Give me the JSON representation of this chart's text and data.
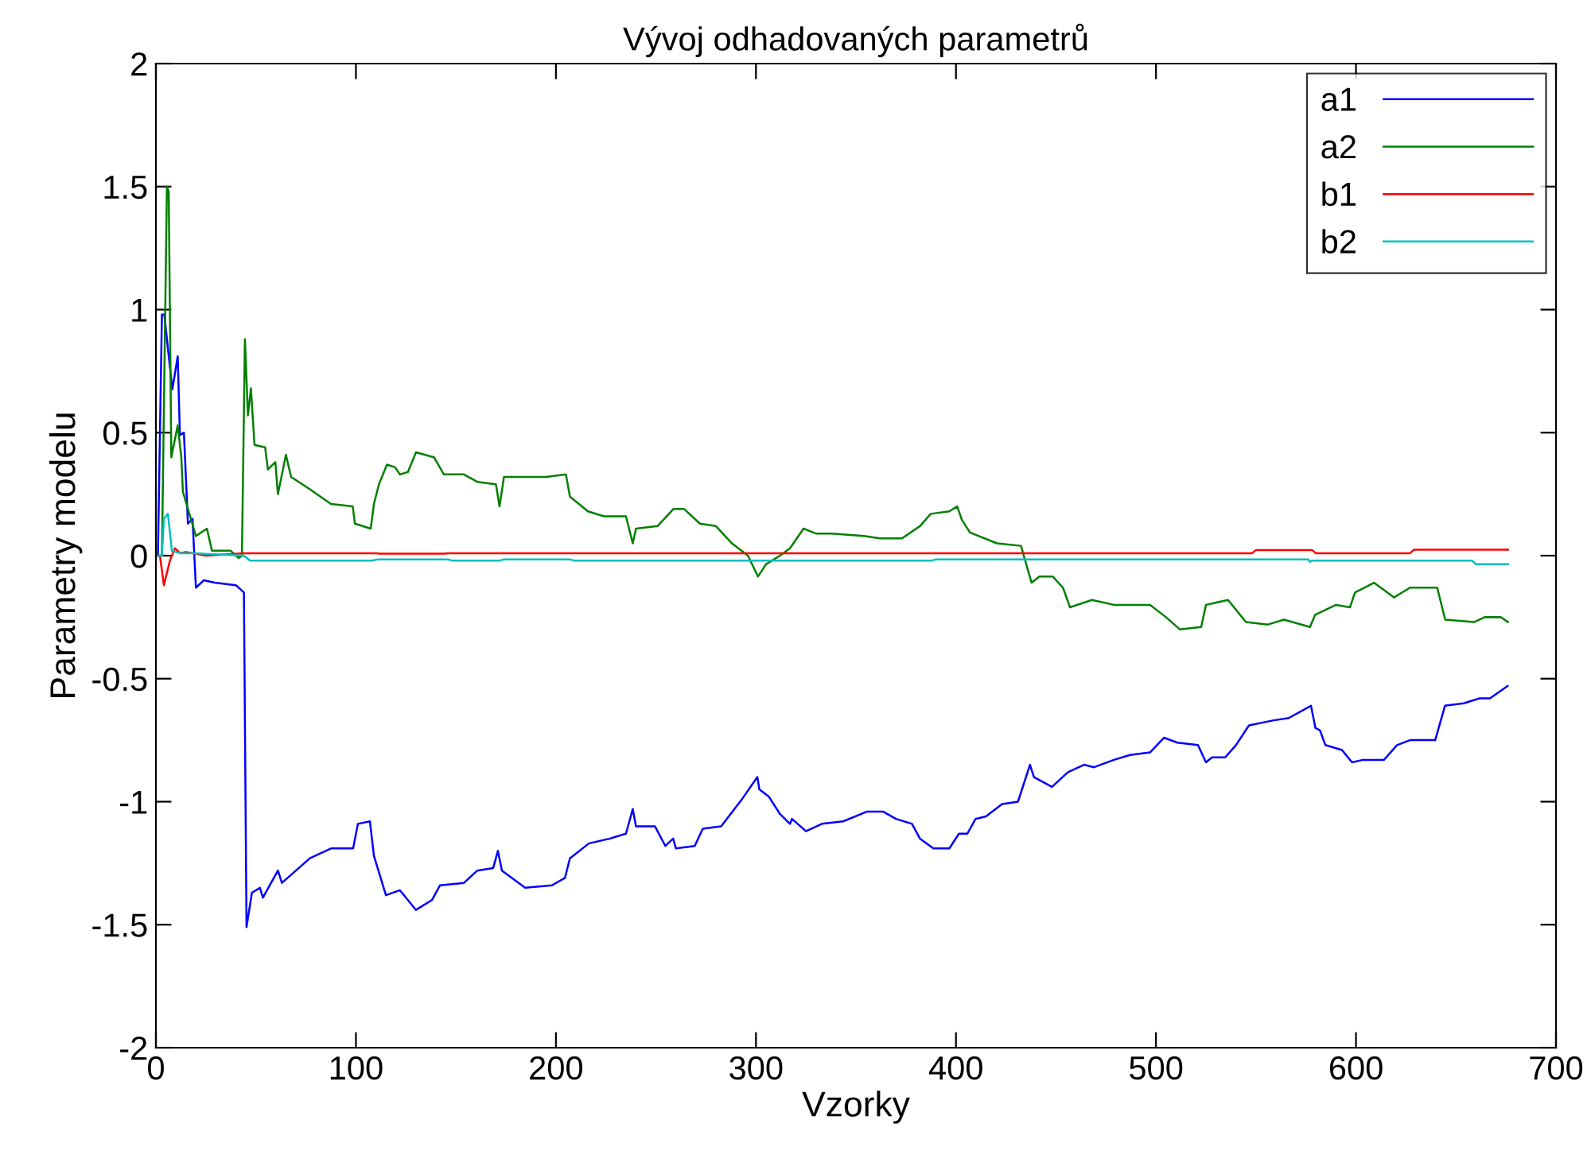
{
  "chart_data": {
    "type": "line",
    "title": "Vývoj odhadovaných parametrů",
    "xlabel": "Vzorky",
    "ylabel": "Parametry modelu",
    "xlim": [
      0,
      700
    ],
    "xticks": [
      0,
      100,
      200,
      300,
      400,
      500,
      600,
      700
    ],
    "ylim": [
      -2,
      2
    ],
    "yticks": [
      -2,
      -1.5,
      -1,
      -0.5,
      0,
      0.5,
      1,
      1.5,
      2
    ],
    "grid": false,
    "legend": "top right",
    "marker": "none",
    "line_style": "solid",
    "series": [
      {
        "name": "a1",
        "color": "#0000ff",
        "x": [
          1,
          3,
          4.2,
          8.2,
          10.9,
          12,
          14,
          16,
          18.3,
          20,
          24,
          29.5,
          40,
          44,
          45.3,
          48,
          52,
          53.5,
          61,
          63,
          77,
          87.5,
          98.6,
          101,
          107,
          109,
          115,
          122,
          130,
          138,
          142,
          154,
          160.7,
          168.6,
          171,
          173,
          184.6,
          198,
          204.5,
          207,
          216.4,
          227,
          235,
          238.4,
          240,
          249.5,
          254.7,
          258.6,
          260,
          269.4,
          273.4,
          282.6,
          293,
          300.7,
          301.7,
          306.5,
          312,
          317,
          318,
          325,
          333,
          343.6,
          355.6,
          363.5,
          370,
          378,
          382,
          388.7,
          396.7,
          401.5,
          405.7,
          409.8,
          415,
          423,
          431,
          437,
          439,
          448,
          456,
          464,
          469,
          479,
          487,
          497,
          504,
          510.7,
          521,
          525,
          528,
          534.6,
          540,
          546.5,
          558.4,
          566.4,
          577.5,
          579.7,
          582,
          584.7,
          593,
          598,
          603.5,
          614,
          620.5,
          627,
          636,
          639.6,
          644.5,
          653.9,
          661.8,
          667,
          675.8
        ],
        "values": [
          0,
          0.98,
          0.98,
          0.675,
          0.81,
          0.49,
          0.5,
          0.13,
          0.15,
          -0.13,
          -0.1,
          -0.11,
          -0.12,
          -0.15,
          -1.51,
          -1.37,
          -1.35,
          -1.39,
          -1.28,
          -1.33,
          -1.23,
          -1.19,
          -1.19,
          -1.09,
          -1.08,
          -1.22,
          -1.38,
          -1.36,
          -1.44,
          -1.4,
          -1.34,
          -1.33,
          -1.28,
          -1.27,
          -1.2,
          -1.28,
          -1.35,
          -1.34,
          -1.31,
          -1.23,
          -1.17,
          -1.15,
          -1.13,
          -1.03,
          -1.1,
          -1.1,
          -1.18,
          -1.15,
          -1.19,
          -1.18,
          -1.11,
          -1.1,
          -0.99,
          -0.9,
          -0.95,
          -0.98,
          -1.05,
          -1.09,
          -1.07,
          -1.12,
          -1.09,
          -1.08,
          -1.04,
          -1.04,
          -1.07,
          -1.09,
          -1.15,
          -1.19,
          -1.19,
          -1.13,
          -1.13,
          -1.07,
          -1.06,
          -1.01,
          -1,
          -0.85,
          -0.9,
          -0.94,
          -0.88,
          -0.85,
          -0.86,
          -0.83,
          -0.81,
          -0.8,
          -0.74,
          -0.76,
          -0.77,
          -0.84,
          -0.82,
          -0.82,
          -0.77,
          -0.69,
          -0.67,
          -0.66,
          -0.61,
          -0.7,
          -0.71,
          -0.77,
          -0.79,
          -0.84,
          -0.83,
          -0.83,
          -0.77,
          -0.75,
          -0.75,
          -0.75,
          -0.61,
          -0.6,
          -0.58,
          -0.58,
          -0.53
        ]
      },
      {
        "name": "a2",
        "color": "#008000",
        "x": [
          1,
          3,
          5.5,
          6.4,
          7.7,
          10.9,
          12.7,
          13.5,
          16,
          20,
          25.5,
          28,
          37.4,
          41.4,
          43,
          44.5,
          46,
          47.5,
          49.3,
          54.6,
          56,
          59.7,
          61,
          65,
          67.6,
          77,
          87.5,
          98.4,
          99.5,
          107.4,
          109,
          111.5,
          115.5,
          119.5,
          122,
          126,
          130,
          139,
          144,
          154,
          160.7,
          170,
          171.8,
          174,
          184.6,
          195,
          205,
          207,
          216,
          224,
          235,
          238.4,
          240,
          250.8,
          258.8,
          264,
          272,
          280,
          288,
          296,
          301,
          305,
          312,
          317,
          323.8,
          330,
          338,
          354,
          362,
          373,
          382,
          387.4,
          396.7,
          400.6,
          403,
          407,
          420.5,
          432.5,
          437.8,
          441.7,
          448.4,
          453.5,
          457,
          468,
          479,
          497,
          505,
          512,
          522.6,
          525,
          536,
          545,
          556,
          564,
          577,
          579.6,
          590,
          597,
          599.5,
          609,
          619,
          627,
          640.6,
          644.6,
          659,
          664.4,
          672.4,
          676
        ],
        "values": [
          0,
          0,
          1.5,
          1.48,
          0.4,
          0.53,
          0.4,
          0.26,
          0.19,
          0.08,
          0.11,
          0.02,
          0.02,
          -0.01,
          0,
          0.88,
          0.57,
          0.68,
          0.45,
          0.44,
          0.35,
          0.38,
          0.25,
          0.41,
          0.32,
          0.27,
          0.21,
          0.2,
          0.13,
          0.11,
          0.21,
          0.29,
          0.37,
          0.36,
          0.33,
          0.34,
          0.42,
          0.4,
          0.33,
          0.33,
          0.3,
          0.29,
          0.2,
          0.32,
          0.32,
          0.32,
          0.33,
          0.24,
          0.18,
          0.16,
          0.16,
          0.05,
          0.11,
          0.12,
          0.19,
          0.19,
          0.13,
          0.12,
          0.05,
          0,
          -0.085,
          -0.035,
          0,
          0.03,
          0.11,
          0.09,
          0.09,
          0.08,
          0.07,
          0.07,
          0.12,
          0.17,
          0.18,
          0.2,
          0.145,
          0.094,
          0.05,
          0.04,
          -0.11,
          -0.085,
          -0.085,
          -0.13,
          -0.21,
          -0.18,
          -0.2,
          -0.2,
          -0.25,
          -0.3,
          -0.29,
          -0.2,
          -0.18,
          -0.27,
          -0.28,
          -0.26,
          -0.29,
          -0.24,
          -0.2,
          -0.21,
          -0.15,
          -0.11,
          -0.17,
          -0.13,
          -0.13,
          -0.26,
          -0.27,
          -0.25,
          -0.25,
          -0.27
        ]
      },
      {
        "name": "b1",
        "color": "#ff0000",
        "x": [
          1,
          2,
          4,
          7,
          9.5,
          12,
          15,
          25,
          44,
          110,
          112,
          144,
          146,
          548,
          550,
          578,
          580,
          627,
          629,
          676
        ],
        "values": [
          0,
          0,
          -0.12,
          -0.02,
          0.03,
          0.01,
          0.015,
          0,
          0.01,
          0.01,
          0.008,
          0.008,
          0.01,
          0.01,
          0.023,
          0.023,
          0.01,
          0.01,
          0.024,
          0.024
        ]
      },
      {
        "name": "b2",
        "color": "#00bfbf",
        "x": [
          1,
          3,
          4,
          6,
          8,
          12,
          19,
          44,
          47,
          108,
          111,
          146,
          148,
          172,
          174,
          207,
          209,
          388,
          390,
          576,
          577,
          578,
          658,
          660,
          676
        ],
        "values": [
          0,
          0,
          0.15,
          0.17,
          0.02,
          0.01,
          0.01,
          0,
          -0.02,
          -0.02,
          -0.015,
          -0.015,
          -0.02,
          -0.02,
          -0.015,
          -0.015,
          -0.02,
          -0.02,
          -0.015,
          -0.015,
          -0.025,
          -0.02,
          -0.02,
          -0.035,
          -0.035
        ]
      }
    ]
  }
}
